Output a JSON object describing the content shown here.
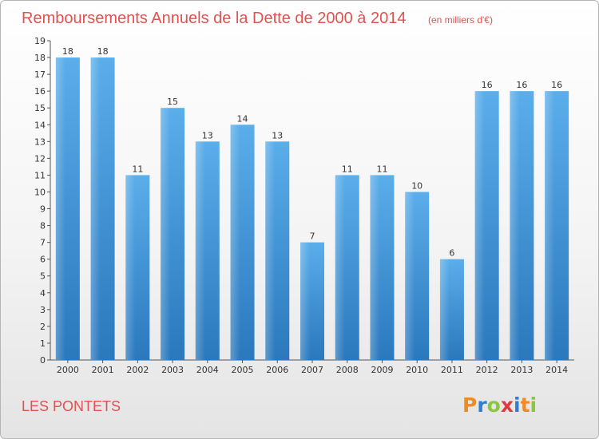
{
  "chart_data": {
    "type": "bar",
    "title": "Remboursements Annuels de la Dette de 2000 à 2014",
    "subtitle": "(en milliers d'€)",
    "categories": [
      "2000",
      "2001",
      "2002",
      "2003",
      "2004",
      "2005",
      "2006",
      "2007",
      "2008",
      "2009",
      "2010",
      "2011",
      "2012",
      "2013",
      "2014"
    ],
    "values": [
      18,
      18,
      11,
      15,
      13,
      14,
      13,
      7,
      11,
      11,
      10,
      6,
      16,
      16,
      16
    ],
    "ylim": [
      0,
      19
    ],
    "yticks": [
      0,
      1,
      2,
      3,
      4,
      5,
      6,
      7,
      8,
      9,
      10,
      11,
      12,
      13,
      14,
      15,
      16,
      17,
      18,
      19
    ],
    "grid": false,
    "bar_color": "#4a9fe0"
  },
  "footer": {
    "commune": "LES PONTETS",
    "brand": "Proxiti"
  },
  "logo": {
    "letters": [
      "P",
      "r",
      "o",
      "x",
      "i",
      "t",
      "i"
    ],
    "colors": [
      "#f08a24",
      "#2f7fd0",
      "#8cc63f",
      "#e03a3e",
      "#2f7fd0",
      "#f08a24",
      "#8cc63f"
    ]
  }
}
